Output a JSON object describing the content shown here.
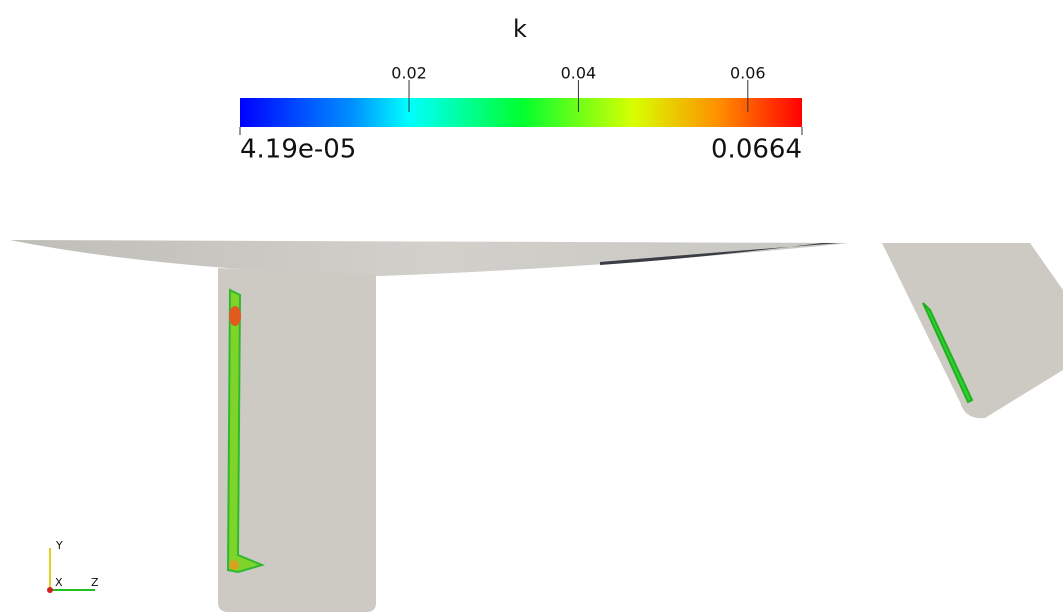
{
  "colorbar": {
    "title": "k",
    "range": [
      {
        "value": 4.19e-05,
        "label": "4.19e-05"
      },
      0.0664
    ],
    "ticks": [
      0.02,
      0.04,
      0.06
    ]
  },
  "axes_triad": {
    "y": "Y",
    "x": "X",
    "z": "Z"
  }
}
